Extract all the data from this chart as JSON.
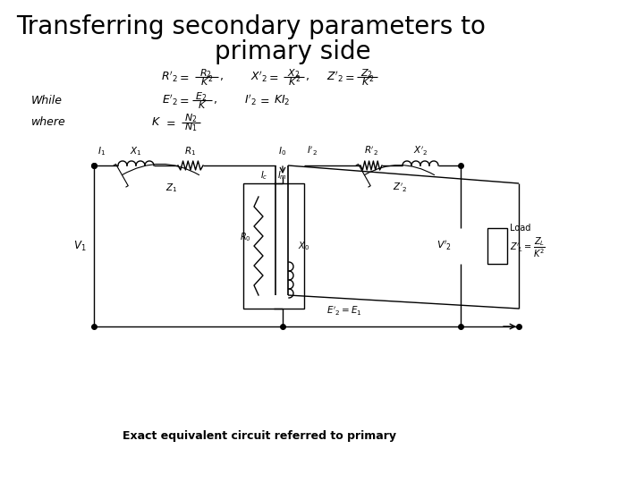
{
  "title_line1": "Transferring secondary parameters to",
  "title_line2": "primary side",
  "title_fontsize": 20,
  "bg_color": "#ffffff",
  "text_color": "#000000",
  "caption": "Exact equivalent circuit referred to primary",
  "caption_fontsize": 9
}
